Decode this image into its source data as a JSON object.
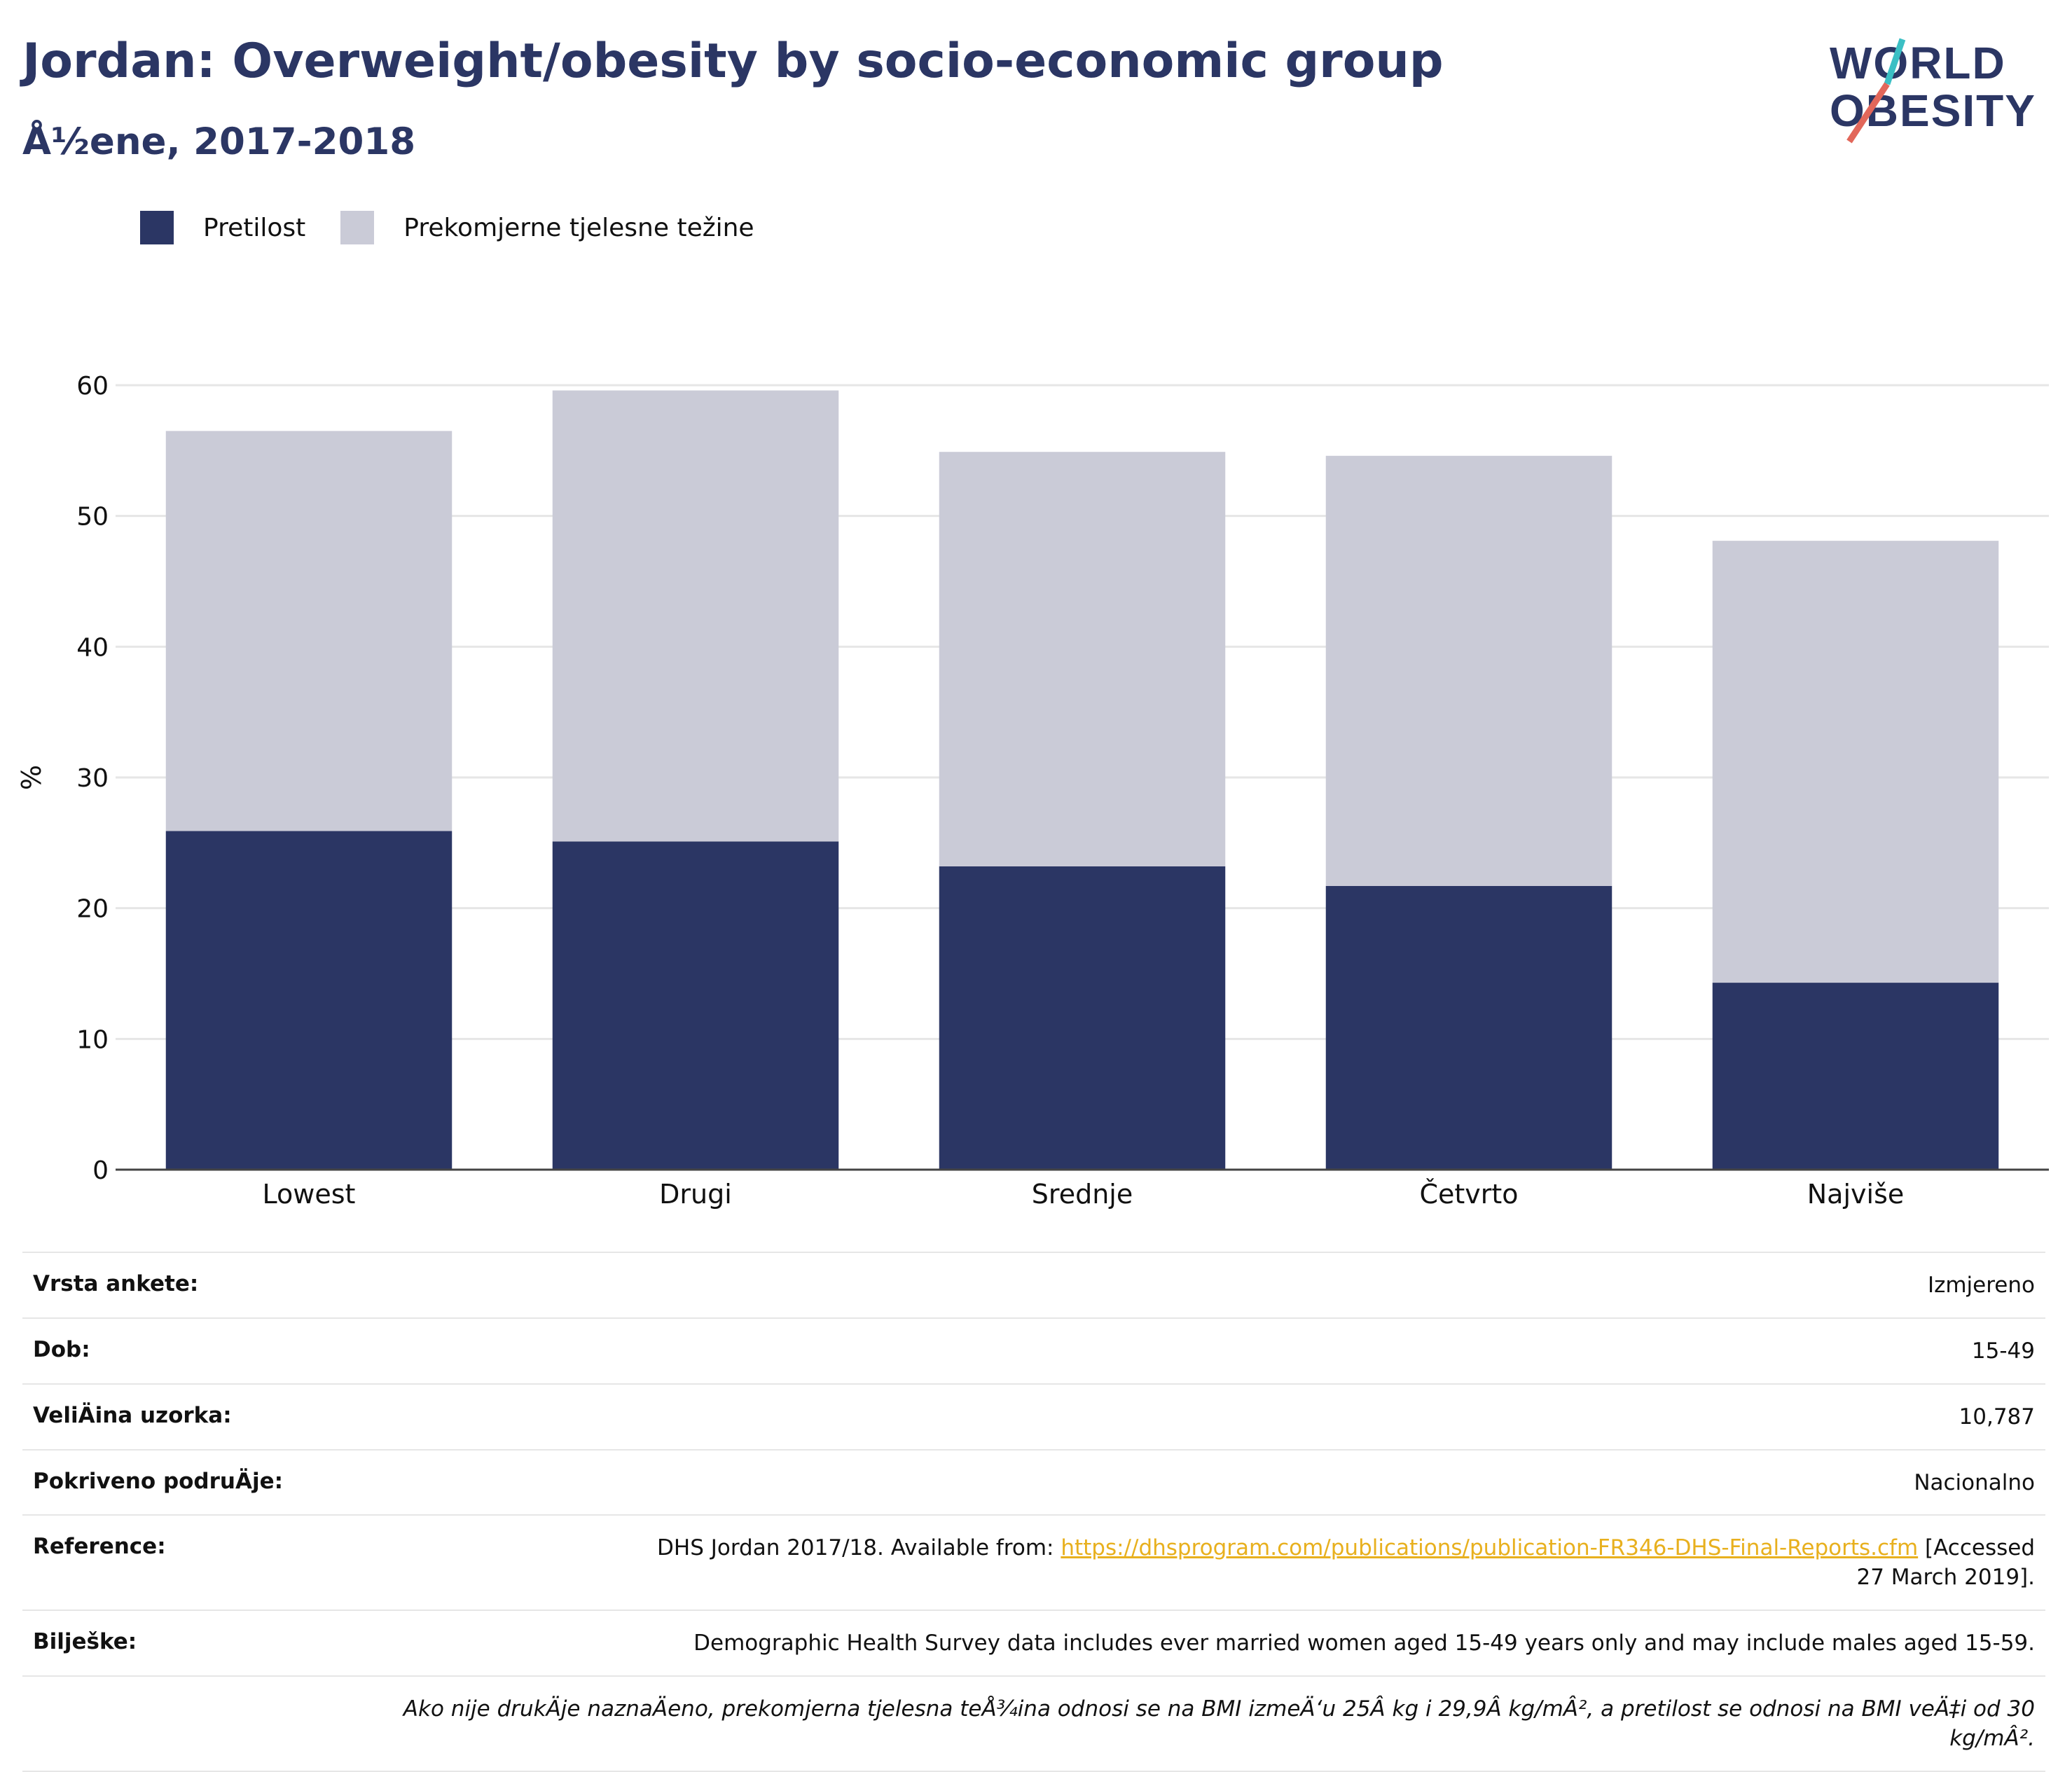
{
  "header": {
    "title": "Jordan: Overweight/obesity by socio-economic group",
    "subtitle": "Å½ene, 2017-2018"
  },
  "logo": {
    "line1": "WORLD",
    "line2": "OBESITY"
  },
  "colors": {
    "obesity": "#2b3664",
    "overweight": "#cacbd7",
    "title": "#2b3664",
    "link": "#e8b01e"
  },
  "legend": [
    {
      "label": "Pretilost",
      "color": "#2b3664"
    },
    {
      "label": "Prekomjerne tjelesne težine",
      "color": "#cacbd7"
    }
  ],
  "chart_data": {
    "type": "bar",
    "stacked": true,
    "categories": [
      "Lowest",
      "Drugi",
      "Srednje",
      "Četvrto",
      "Najviše"
    ],
    "series": [
      {
        "name": "Pretilost",
        "values": [
          25.9,
          25.1,
          23.2,
          21.7,
          14.3
        ]
      },
      {
        "name": "Prekomjerne tjelesne težine",
        "values": [
          30.6,
          34.5,
          31.7,
          32.9,
          33.8
        ]
      }
    ],
    "totals": [
      56.5,
      59.6,
      54.9,
      54.6,
      48.1
    ],
    "ylabel": "%",
    "ylim": [
      0,
      60
    ],
    "yticks": [
      0,
      10,
      20,
      30,
      40,
      50,
      60
    ],
    "grid": true,
    "legend_position": "top-left"
  },
  "meta": {
    "rows": [
      {
        "key": "Vrsta ankete:",
        "value": "Izmjereno"
      },
      {
        "key": "Dob:",
        "value": "15-49"
      },
      {
        "key": "VeliÄ\bina uzorka:",
        "value": "10,787"
      },
      {
        "key": "Pokriveno podruÄ\bje:",
        "value": "Nacionalno"
      }
    ],
    "reference": {
      "key": "Reference:",
      "prefix": "DHS Jordan 2017/18. Available from: ",
      "link": "https://dhsprogram.com/publications/publication-FR346-DHS-Final-Reports.cfm",
      "suffix": " [Accessed 27 March 2019]."
    },
    "notes": {
      "key": "Bilješke:",
      "value": "Demographic Health Survey data includes ever married women aged 15-49 years only and may include males aged 15-59."
    },
    "footnote": "Ako nije drukÄ\bje naznaÄ\beno, prekomjerna tjelesna teÅ¾ina odnosi se na BMI izmeÄ‘u 25Â kg i 29,9Â kg/mÂ², a pretilost se odnosi na BMI veÄ‡i od 30 kg/mÂ²."
  }
}
